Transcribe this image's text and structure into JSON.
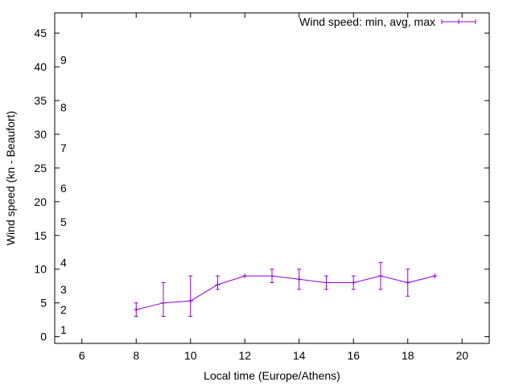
{
  "chart_data": {
    "type": "line",
    "title": "",
    "xlabel": "Local time (Europe/Athens)",
    "ylabel": "Wind speed (kn - Beaufort)",
    "xlim": [
      5,
      21
    ],
    "ylim": [
      -1,
      48
    ],
    "grid": false,
    "legend_position": "top-right",
    "x_ticks": [
      6,
      8,
      10,
      12,
      14,
      16,
      18,
      20
    ],
    "y_ticks": [
      0,
      5,
      10,
      15,
      20,
      25,
      30,
      35,
      40,
      45
    ],
    "beaufort_labels": [
      {
        "label": "1",
        "value": 1
      },
      {
        "label": "2",
        "value": 4
      },
      {
        "label": "3",
        "value": 7
      },
      {
        "label": "4",
        "value": 11
      },
      {
        "label": "5",
        "value": 17
      },
      {
        "label": "6",
        "value": 22
      },
      {
        "label": "7",
        "value": 28
      },
      {
        "label": "8",
        "value": 34
      },
      {
        "label": "9",
        "value": 41
      }
    ],
    "series": [
      {
        "name": "Wind speed: min, avg, max",
        "color": "#9400d3",
        "points": [
          {
            "x": 8,
            "min": 3,
            "avg": 4,
            "max": 5
          },
          {
            "x": 9,
            "min": 3,
            "avg": 5,
            "max": 8
          },
          {
            "x": 10,
            "min": 3,
            "avg": 5.3,
            "max": 9
          },
          {
            "x": 11,
            "min": 7,
            "avg": 7.7,
            "max": 9
          },
          {
            "x": 12,
            "min": 9,
            "avg": 9,
            "max": 9
          },
          {
            "x": 13,
            "min": 8,
            "avg": 9,
            "max": 10
          },
          {
            "x": 14,
            "min": 7,
            "avg": 8.5,
            "max": 10
          },
          {
            "x": 15,
            "min": 7,
            "avg": 8,
            "max": 9
          },
          {
            "x": 16,
            "min": 7,
            "avg": 8,
            "max": 9
          },
          {
            "x": 17,
            "min": 7,
            "avg": 9,
            "max": 11
          },
          {
            "x": 18,
            "min": 6,
            "avg": 8,
            "max": 10
          },
          {
            "x": 19,
            "min": 9,
            "avg": 9,
            "max": 9
          }
        ]
      }
    ]
  }
}
